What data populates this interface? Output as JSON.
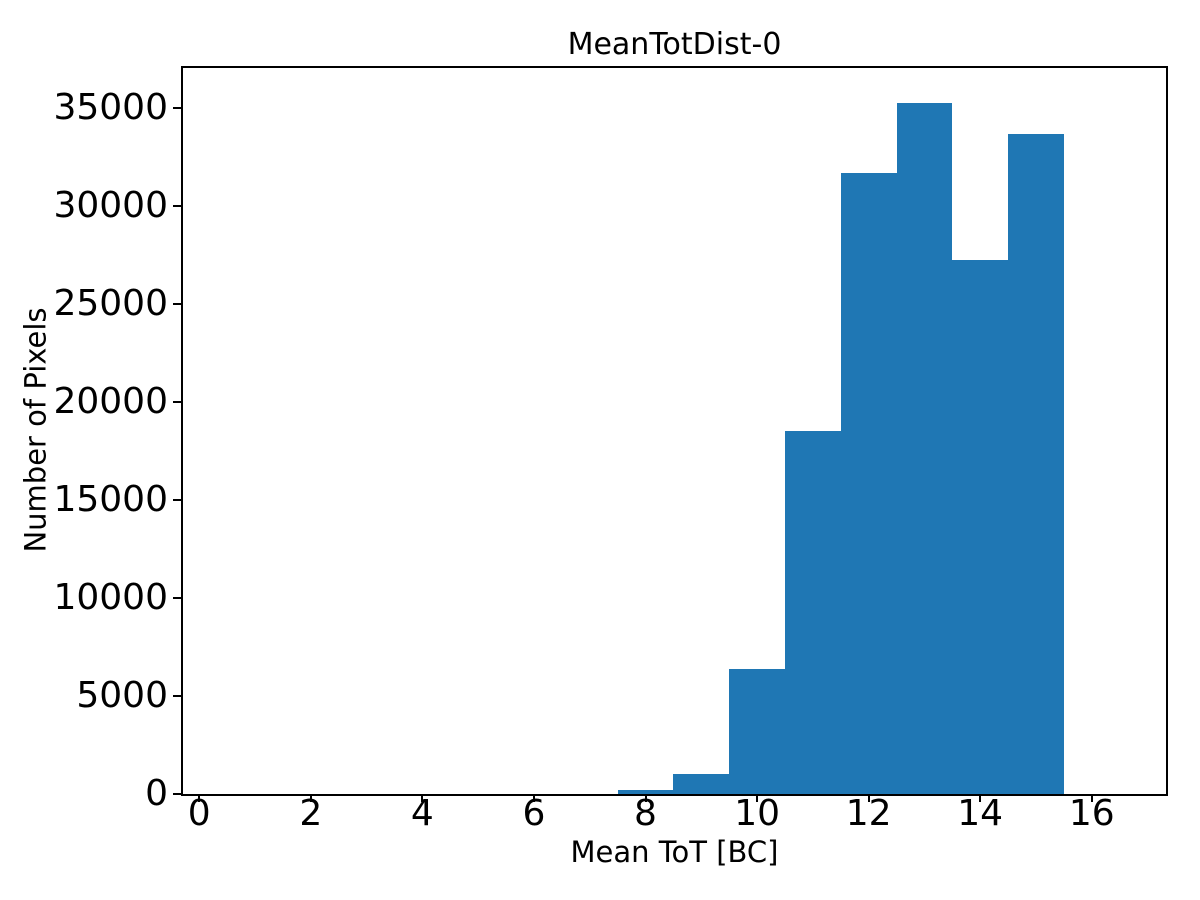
{
  "chart_data": {
    "type": "bar",
    "subtype": "histogram",
    "title": "MeanTotDist-0",
    "xlabel": "Mean ToT [BC]",
    "ylabel": "Number of Pixels",
    "bin_edges": [
      0.5,
      1.5,
      2.5,
      3.5,
      4.5,
      5.5,
      6.5,
      7.5,
      8.5,
      9.5,
      10.5,
      11.5,
      12.5,
      13.5,
      14.5,
      15.5,
      16.5
    ],
    "counts": [
      0,
      0,
      0,
      0,
      0,
      0,
      0,
      220,
      1000,
      6380,
      18520,
      31680,
      35250,
      27250,
      33670,
      0
    ],
    "xticks": [
      0,
      2,
      4,
      6,
      8,
      10,
      12,
      14,
      16
    ],
    "yticks": [
      0,
      5000,
      10000,
      15000,
      20000,
      25000,
      30000,
      35000
    ],
    "xlim": [
      -0.29,
      17.33
    ],
    "ylim": [
      0,
      37040
    ],
    "bar_color": "#1f77b4",
    "text_color": "#000000",
    "grid": false,
    "legend": null
  }
}
